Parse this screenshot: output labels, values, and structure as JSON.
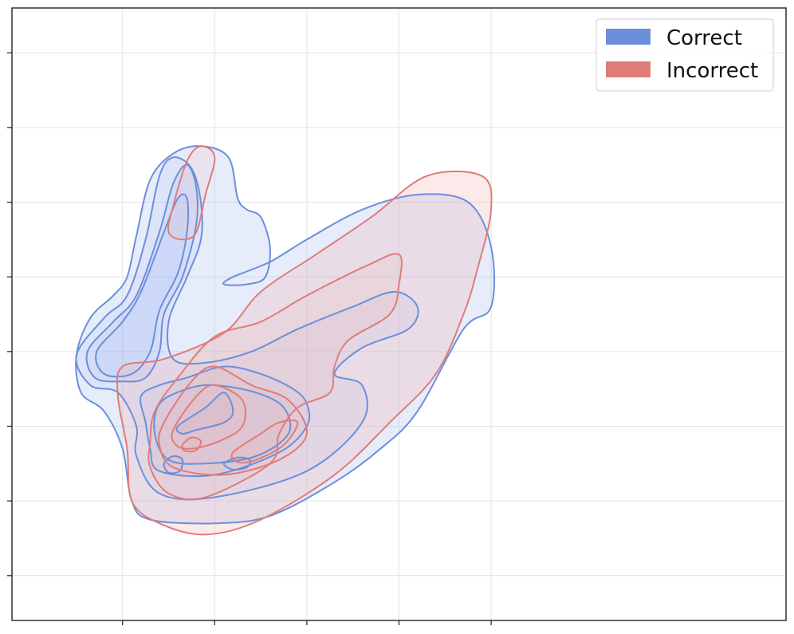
{
  "chart_data": {
    "type": "kde-contour",
    "title": "",
    "xlabel": "",
    "ylabel": "",
    "grid": true,
    "tick_labels_visible": false,
    "legend_position": "top-right",
    "xlim": [
      -2.2,
      6.2
    ],
    "ylim": [
      -3.6,
      4.6
    ],
    "xticks": [
      -1,
      0,
      1,
      2,
      3
    ],
    "yticks": [
      -3,
      -2,
      -1,
      0,
      1,
      2,
      3,
      4
    ],
    "series": [
      {
        "name": "Correct",
        "color": "#6b8fdb",
        "fill_color": "#aabcf0",
        "levels": [
          [
            [
              -1.5,
              -0.05
            ],
            [
              -1.35,
              0.45
            ],
            [
              -1.1,
              0.75
            ],
            [
              -0.95,
              1.0
            ],
            [
              -0.85,
              1.55
            ],
            [
              -0.7,
              2.3
            ],
            [
              -0.45,
              2.65
            ],
            [
              -0.15,
              2.75
            ],
            [
              0.15,
              2.6
            ],
            [
              0.25,
              2.05
            ],
            [
              0.35,
              1.9
            ],
            [
              0.5,
              1.8
            ],
            [
              0.6,
              1.4
            ],
            [
              0.55,
              1.0
            ],
            [
              0.35,
              0.9
            ],
            [
              0.1,
              0.9
            ],
            [
              0.2,
              1.0
            ],
            [
              0.6,
              1.2
            ],
            [
              1.0,
              1.5
            ],
            [
              1.6,
              1.9
            ],
            [
              2.2,
              2.1
            ],
            [
              2.75,
              2.0
            ],
            [
              3.0,
              1.4
            ],
            [
              3.0,
              0.6
            ],
            [
              2.7,
              0.3
            ],
            [
              2.2,
              -0.8
            ],
            [
              1.8,
              -1.3
            ],
            [
              1.3,
              -1.75
            ],
            [
              0.6,
              -2.2
            ],
            [
              0.0,
              -2.3
            ],
            [
              -0.7,
              -2.25
            ],
            [
              -0.9,
              -2.0
            ],
            [
              -1.0,
              -1.3
            ],
            [
              -1.2,
              -0.8
            ],
            [
              -1.45,
              -0.55
            ]
          ],
          [
            [
              -1.5,
              -0.05
            ],
            [
              -1.2,
              0.45
            ],
            [
              -0.95,
              0.75
            ],
            [
              -0.75,
              1.5
            ],
            [
              -0.6,
              2.35
            ],
            [
              -0.45,
              2.6
            ],
            [
              -0.25,
              2.45
            ],
            [
              -0.15,
              2.0
            ],
            [
              -0.15,
              1.5
            ],
            [
              -0.3,
              1.0
            ],
            [
              -0.5,
              0.4
            ],
            [
              -0.45,
              -0.1
            ],
            [
              -0.1,
              -0.15
            ],
            [
              0.4,
              0.0
            ],
            [
              0.9,
              0.3
            ],
            [
              1.5,
              0.6
            ],
            [
              1.95,
              0.8
            ],
            [
              2.2,
              0.6
            ],
            [
              2.1,
              0.3
            ],
            [
              1.6,
              0.05
            ],
            [
              1.3,
              -0.3
            ],
            [
              1.6,
              -0.45
            ],
            [
              1.6,
              -0.95
            ],
            [
              1.0,
              -1.6
            ],
            [
              0.0,
              -1.95
            ],
            [
              -0.6,
              -1.9
            ],
            [
              -0.85,
              -1.4
            ],
            [
              -0.85,
              -1.0
            ],
            [
              -1.05,
              -0.55
            ],
            [
              -1.35,
              -0.45
            ]
          ],
          [
            [
              -1.38,
              0.0
            ],
            [
              -1.1,
              0.4
            ],
            [
              -0.85,
              0.75
            ],
            [
              -0.6,
              1.6
            ],
            [
              -0.45,
              2.25
            ],
            [
              -0.3,
              2.5
            ],
            [
              -0.2,
              2.2
            ],
            [
              -0.2,
              1.7
            ],
            [
              -0.35,
              1.0
            ],
            [
              -0.55,
              0.5
            ],
            [
              -0.6,
              0.0
            ],
            [
              -0.75,
              -0.35
            ],
            [
              -1.0,
              -0.4
            ],
            [
              -1.3,
              -0.35
            ]
          ],
          [
            [
              -1.28,
              0.0
            ],
            [
              -1.0,
              0.4
            ],
            [
              -0.8,
              0.8
            ],
            [
              -0.55,
              1.6
            ],
            [
              -0.4,
              2.05
            ],
            [
              -0.3,
              2.05
            ],
            [
              -0.3,
              1.6
            ],
            [
              -0.4,
              1.05
            ],
            [
              -0.6,
              0.55
            ],
            [
              -0.7,
              0.0
            ],
            [
              -0.9,
              -0.3
            ],
            [
              -1.2,
              -0.3
            ]
          ],
          [
            [
              -0.8,
              -0.6
            ],
            [
              -0.6,
              -0.45
            ],
            [
              -0.3,
              -0.35
            ],
            [
              0.1,
              -0.2
            ],
            [
              0.5,
              -0.3
            ],
            [
              0.85,
              -0.5
            ],
            [
              1.0,
              -0.7
            ],
            [
              1.0,
              -1.0
            ],
            [
              0.7,
              -1.35
            ],
            [
              0.0,
              -1.65
            ],
            [
              -0.6,
              -1.6
            ],
            [
              -0.7,
              -1.3
            ],
            [
              -0.75,
              -0.95
            ]
          ],
          [
            [
              -0.6,
              -0.7
            ],
            [
              -0.3,
              -0.5
            ],
            [
              0.0,
              -0.45
            ],
            [
              0.45,
              -0.55
            ],
            [
              0.75,
              -0.75
            ],
            [
              0.8,
              -1.1
            ],
            [
              0.45,
              -1.4
            ],
            [
              -0.1,
              -1.5
            ],
            [
              -0.5,
              -1.45
            ],
            [
              -0.65,
              -1.1
            ]
          ],
          [
            [
              -0.4,
              -1.0
            ],
            [
              -0.1,
              -0.75
            ],
            [
              0.1,
              -0.55
            ],
            [
              0.2,
              -0.8
            ],
            [
              0.1,
              -0.95
            ],
            [
              -0.2,
              -1.05
            ],
            [
              -0.35,
              -1.1
            ]
          ],
          [
            [
              -0.55,
              -1.5
            ],
            [
              -0.45,
              -1.4
            ],
            [
              -0.35,
              -1.45
            ],
            [
              -0.38,
              -1.6
            ],
            [
              -0.5,
              -1.62
            ]
          ],
          [
            [
              0.1,
              -1.5
            ],
            [
              0.25,
              -1.42
            ],
            [
              0.38,
              -1.45
            ],
            [
              0.35,
              -1.55
            ],
            [
              0.2,
              -1.58
            ]
          ]
        ]
      },
      {
        "name": "Incorrect",
        "color": "#e07c78",
        "fill_color": "#efb3b0",
        "levels": [
          [
            [
              -1.0,
              -0.2
            ],
            [
              -0.55,
              -0.1
            ],
            [
              0.1,
              0.25
            ],
            [
              0.5,
              0.8
            ],
            [
              1.1,
              1.3
            ],
            [
              1.7,
              1.8
            ],
            [
              2.3,
              2.35
            ],
            [
              2.9,
              2.35
            ],
            [
              3.0,
              1.9
            ],
            [
              2.85,
              1.1
            ],
            [
              2.7,
              0.5
            ],
            [
              2.4,
              -0.3
            ],
            [
              1.9,
              -0.95
            ],
            [
              1.3,
              -1.65
            ],
            [
              0.5,
              -2.25
            ],
            [
              -0.1,
              -2.45
            ],
            [
              -0.6,
              -2.3
            ],
            [
              -0.9,
              -2.0
            ],
            [
              -0.95,
              -1.3
            ],
            [
              -1.05,
              -0.6
            ]
          ],
          [
            [
              -0.65,
              -0.8
            ],
            [
              -0.4,
              -0.35
            ],
            [
              0.0,
              0.2
            ],
            [
              0.5,
              0.4
            ],
            [
              1.0,
              0.75
            ],
            [
              1.65,
              1.15
            ],
            [
              2.0,
              1.3
            ],
            [
              2.0,
              0.9
            ],
            [
              1.9,
              0.5
            ],
            [
              1.45,
              0.15
            ],
            [
              1.3,
              -0.2
            ],
            [
              1.25,
              -0.55
            ],
            [
              0.9,
              -0.75
            ],
            [
              0.7,
              -1.1
            ],
            [
              0.6,
              -1.5
            ],
            [
              -0.1,
              -1.95
            ],
            [
              -0.5,
              -1.9
            ],
            [
              -0.7,
              -1.55
            ],
            [
              -0.7,
              -1.2
            ]
          ],
          [
            [
              -0.55,
              -0.95
            ],
            [
              -0.25,
              -0.4
            ],
            [
              0.0,
              -0.2
            ],
            [
              0.4,
              -0.45
            ],
            [
              0.8,
              -0.65
            ],
            [
              1.0,
              -1.1
            ],
            [
              0.7,
              -1.45
            ],
            [
              0.1,
              -1.65
            ],
            [
              -0.45,
              -1.55
            ],
            [
              -0.6,
              -1.25
            ]
          ],
          [
            [
              -0.45,
              -1.05
            ],
            [
              -0.2,
              -0.6
            ],
            [
              0.0,
              -0.45
            ],
            [
              0.3,
              -0.65
            ],
            [
              0.3,
              -1.0
            ],
            [
              0.05,
              -1.2
            ],
            [
              -0.25,
              -1.3
            ],
            [
              -0.42,
              -1.25
            ]
          ],
          [
            [
              0.2,
              -1.35
            ],
            [
              0.5,
              -1.1
            ],
            [
              0.7,
              -0.95
            ],
            [
              0.9,
              -0.95
            ],
            [
              0.75,
              -1.25
            ],
            [
              0.45,
              -1.45
            ],
            [
              0.25,
              -1.48
            ]
          ],
          [
            [
              -0.45,
              1.95
            ],
            [
              -0.3,
              2.55
            ],
            [
              -0.15,
              2.75
            ],
            [
              0.0,
              2.6
            ],
            [
              -0.1,
              2.1
            ],
            [
              -0.2,
              1.6
            ],
            [
              -0.35,
              1.5
            ],
            [
              -0.5,
              1.6
            ]
          ],
          [
            [
              -0.35,
              -1.25
            ],
            [
              -0.25,
              -1.15
            ],
            [
              -0.15,
              -1.2
            ],
            [
              -0.2,
              -1.32
            ],
            [
              -0.32,
              -1.33
            ]
          ]
        ]
      }
    ]
  },
  "legend": {
    "entries": [
      {
        "label": "Correct",
        "color": "#6b8fdb"
      },
      {
        "label": "Incorrect",
        "color": "#e07c78"
      }
    ]
  }
}
